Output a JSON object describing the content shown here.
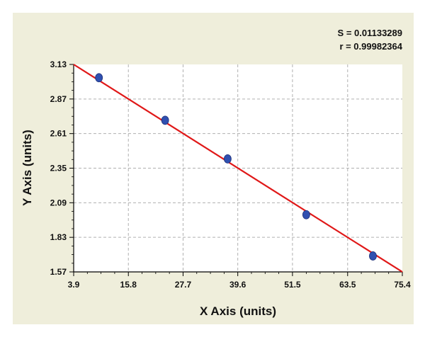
{
  "chart_data": {
    "type": "scatter",
    "title": "",
    "xlabel": "X Axis (units)",
    "ylabel": "Y Axis (units)",
    "xlim": [
      3.9,
      75.4
    ],
    "ylim": [
      1.57,
      3.13
    ],
    "x_ticks": [
      "3.9",
      "15.8",
      "27.7",
      "39.6",
      "51.5",
      "63.5",
      "75.4"
    ],
    "y_ticks": [
      "3.13",
      "2.87",
      "2.61",
      "2.35",
      "2.09",
      "1.83",
      "1.57"
    ],
    "grid": true,
    "series": [
      {
        "points": [
          {
            "x": 9.4,
            "y": 3.03
          },
          {
            "x": 23.8,
            "y": 2.71
          },
          {
            "x": 37.4,
            "y": 2.42
          },
          {
            "x": 54.5,
            "y": 2.0
          },
          {
            "x": 69.0,
            "y": 1.69
          }
        ],
        "color": "#3050b0"
      }
    ],
    "fit_line": {
      "x": [
        3.9,
        75.4
      ],
      "y": [
        3.13,
        1.57
      ],
      "color": "#e01818"
    },
    "annotations": [
      "S = 0.01133289",
      "r = 0.99982364"
    ]
  },
  "colors": {
    "panel_background": "#efeedb",
    "plot_background": "#ffffff",
    "grid": "#b0b0b0",
    "axis": "#000000"
  }
}
